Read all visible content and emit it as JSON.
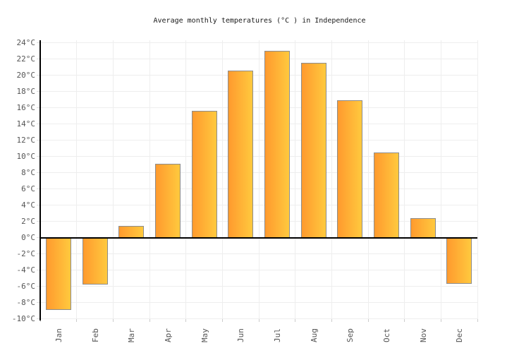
{
  "chart_data": {
    "type": "bar",
    "title": "Average monthly temperatures (°C ) in Independence",
    "categories": [
      "Jan",
      "Feb",
      "Mar",
      "Apr",
      "May",
      "Jun",
      "Jul",
      "Aug",
      "Sep",
      "Oct",
      "Nov",
      "Dec"
    ],
    "values": [
      -8.9,
      -5.8,
      1.4,
      9.1,
      15.6,
      20.6,
      23.0,
      21.5,
      16.9,
      10.5,
      2.4,
      -5.7
    ],
    "unit": "°C",
    "ylabel": "",
    "xlabel": "",
    "ylim": [
      -10,
      24
    ],
    "ytick_step": 2,
    "ytick_suffix": "°C",
    "grid": true,
    "legend": "none",
    "colors": {
      "bar_gradient_start": "#ff9a2e",
      "bar_gradient_end": "#ffc93e",
      "bar_border": "#8c8c8c",
      "zero_line": "#000000",
      "axis": "#000000",
      "gridline": "#eeeeee",
      "tick": "#cccccc",
      "tick_label": "#555555",
      "title_text": "#1a1a1a",
      "background": "#ffffff"
    }
  }
}
